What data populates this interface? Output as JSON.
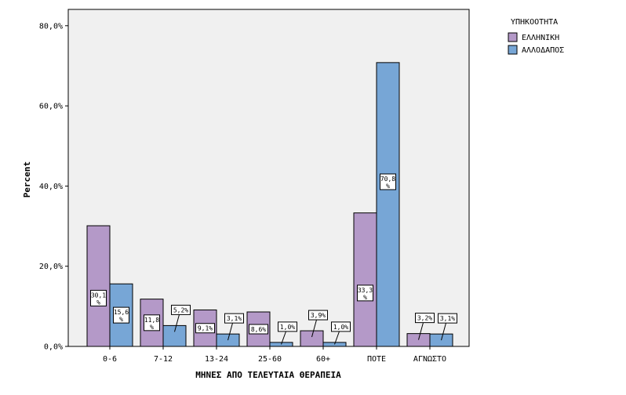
{
  "chart_data": {
    "type": "bar",
    "xlabel": "ΜΗΝΕΣ ΑΠΟ ΤΕΛΕΥΤΑΙΑ ΘΕΡΑΠΕΙΑ",
    "ylabel": "Percent",
    "categories": [
      "0-6",
      "7-12",
      "13-24",
      "25-60",
      "60+",
      "ΠΟΤΕ",
      "ΑΓΝΩΣΤΟ"
    ],
    "ylim": [
      0,
      90
    ],
    "yticks": [
      0,
      20,
      40,
      60,
      80
    ],
    "ytick_labels": [
      "0,0%",
      "20,0%",
      "40,0%",
      "60,0%",
      "80,0%"
    ],
    "grid": false,
    "legend": {
      "title": "ΥΠΗΚΟΟΤΗΤΑ",
      "position": "right"
    },
    "series": [
      {
        "name": "ΕΛΛΗΝΙΚΗ",
        "color": "#b499c8",
        "values": [
          30.1,
          11.8,
          9.1,
          8.6,
          3.9,
          33.3,
          3.2
        ],
        "labels": [
          "30,1 %",
          "11,8 %",
          "9,1%",
          "8,6%",
          "3,9%",
          "33,3 %",
          "3,2%"
        ]
      },
      {
        "name": "ΑΛΛΟΔΑΠΟΣ",
        "color": "#77a6d6",
        "values": [
          15.6,
          5.2,
          3.1,
          1.0,
          1.0,
          70.8,
          3.1
        ],
        "labels": [
          "15,6 %",
          "5,2%",
          "3,1%",
          "1,0%",
          "1,0%",
          "70,8 %",
          "3,1%"
        ]
      }
    ]
  }
}
